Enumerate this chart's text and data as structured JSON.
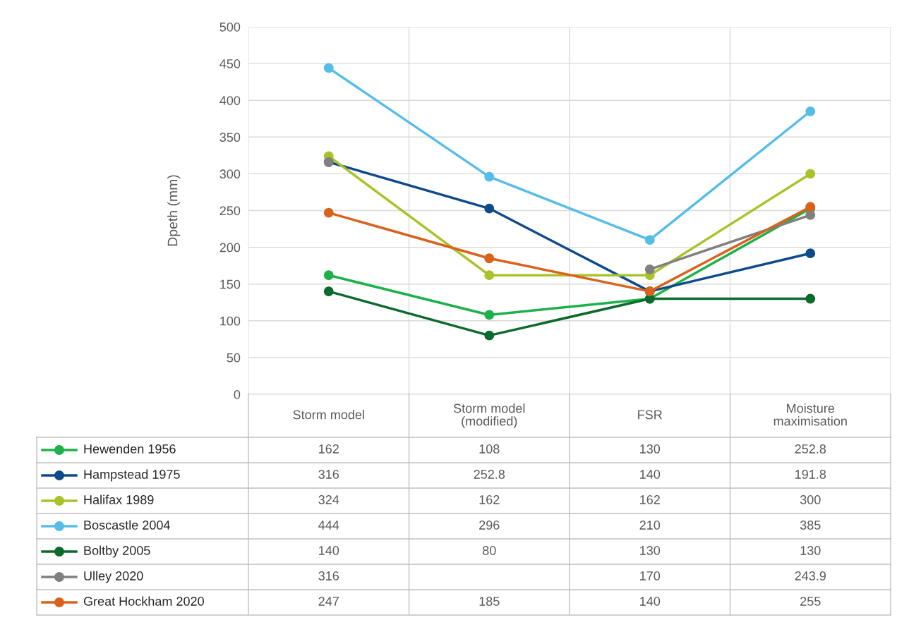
{
  "chart_data": {
    "type": "line",
    "ylabel": "Dpeth (mm)",
    "categories": [
      "Storm model",
      "Storm model\n(modified)",
      "FSR",
      "Moisture\nmaximisation"
    ],
    "ylim": [
      0,
      500
    ],
    "yticks": [
      0,
      50,
      100,
      150,
      200,
      250,
      300,
      350,
      400,
      450,
      500
    ],
    "grid": true,
    "marker": "circle",
    "line_style": "solid",
    "legend": "bottom",
    "data_labels": true,
    "series": [
      {
        "name": "Hewenden 1956",
        "color": "#1eb04a",
        "values": [
          162,
          108,
          130,
          252.8
        ]
      },
      {
        "name": "Hampstead 1975",
        "color": "#0f4a8a",
        "values": [
          316,
          252.8,
          140,
          191.8
        ]
      },
      {
        "name": "Halifax 1989",
        "color": "#aac22a",
        "values": [
          324,
          162,
          162,
          300
        ]
      },
      {
        "name": "Boscastle 2004",
        "color": "#56bce8",
        "values": [
          444,
          296,
          210,
          385
        ]
      },
      {
        "name": "Boltby 2005",
        "color": "#0b6a2c",
        "values": [
          140,
          80,
          130,
          130
        ]
      },
      {
        "name": "Ulley 2020",
        "color": "#808080",
        "values": [
          316,
          null,
          170,
          243.9
        ]
      },
      {
        "name": "Great Hockham 2020",
        "color": "#d9621c",
        "values": [
          247,
          185,
          140,
          255
        ]
      }
    ]
  }
}
